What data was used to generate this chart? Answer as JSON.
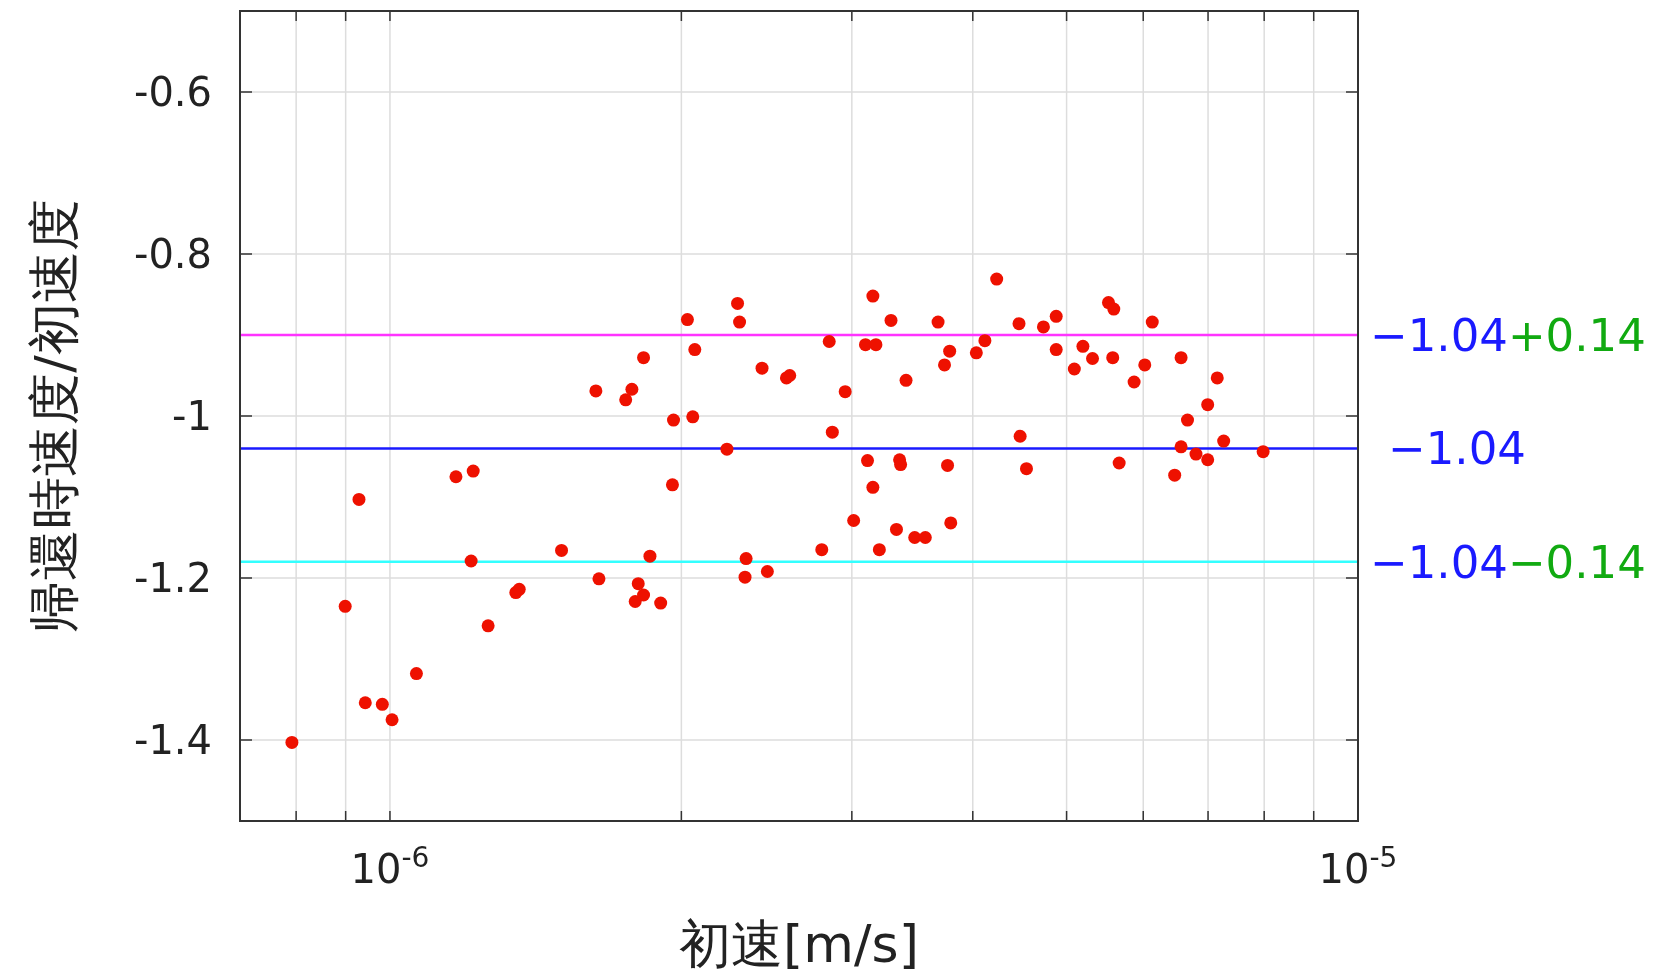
{
  "chart_data": {
    "type": "scatter",
    "xlabel": "初速[m/s]",
    "ylabel": "帰還時速度/初速度",
    "log": "x",
    "grid": true,
    "marker": "circle",
    "xlim": [
      7e-07,
      1e-05
    ],
    "ylim": [
      -1.5,
      -0.5
    ],
    "xticks": [
      {
        "value": 8e-07,
        "label": null
      },
      {
        "value": 9e-07,
        "label": null
      },
      {
        "value": 1e-06,
        "label": "10$^{-6}$"
      },
      {
        "value": 2e-06,
        "label": null
      },
      {
        "value": 3e-06,
        "label": null
      },
      {
        "value": 4e-06,
        "label": null
      },
      {
        "value": 5e-06,
        "label": null
      },
      {
        "value": 6e-06,
        "label": null
      },
      {
        "value": 7e-06,
        "label": null
      },
      {
        "value": 8e-06,
        "label": null
      },
      {
        "value": 9e-06,
        "label": null
      },
      {
        "value": 1e-05,
        "label": "10$^{-5}$"
      }
    ],
    "yticks": [
      -0.6,
      -0.8,
      -1,
      -1.2,
      -1.4
    ],
    "ref_lines": [
      {
        "axis": "y",
        "value": -0.9,
        "label": "−1.04+0.14",
        "color": "#ff33ff"
      },
      {
        "axis": "y",
        "value": -1.04,
        "label": "−1.04",
        "color": "#1a1aff"
      },
      {
        "axis": "y",
        "value": -1.18,
        "label": "−1.04−0.14",
        "color": "#33ffff"
      }
    ],
    "series": [
      {
        "color": "#ee1100",
        "x": [
          7.92e-07,
          8.99e-07,
          9.29e-07,
          9.43e-07,
          9.82e-07,
          1.005e-06,
          1.065e-06,
          1.17e-06,
          1.219e-06,
          1.213e-06,
          1.263e-06,
          1.349e-06,
          1.36e-06,
          1.504e-06,
          1.632e-06,
          1.644e-06,
          1.752e-06,
          1.778e-06,
          1.792e-06,
          1.805e-06,
          1.828e-06,
          1.828e-06,
          1.856e-06,
          1.904e-06,
          1.963e-06,
          1.958e-06,
          2.029e-06,
          2.055e-06,
          2.065e-06,
          2.229e-06,
          2.286e-06,
          2.297e-06,
          2.327e-06,
          2.333e-06,
          2.423e-06,
          2.454e-06,
          2.568e-06,
          2.588e-06,
          2.793e-06,
          2.843e-06,
          2.864e-06,
          2.953e-06,
          3.013e-06,
          3.099e-06,
          3.177e-06,
          3.114e-06,
          3.154e-06,
          3.154e-06,
          3.203e-06,
          3.293e-06,
          3.336e-06,
          3.361e-06,
          3.369e-06,
          3.413e-06,
          3.484e-06,
          3.573e-06,
          3.683e-06,
          3.74e-06,
          3.767e-06,
          3.786e-06,
          3.796e-06,
          4.034e-06,
          4.117e-06,
          4.234e-06,
          4.465e-06,
          4.477e-06,
          4.545e-06,
          4.732e-06,
          4.878e-06,
          4.878e-06,
          5.093e-06,
          5.198e-06,
          5.318e-06,
          5.524e-06,
          5.594e-06,
          5.58e-06,
          5.666e-06,
          5.871e-06,
          6.022e-06,
          6.13e-06,
          6.466e-06,
          6.565e-06,
          6.565e-06,
          6.666e-06,
          6.802e-06,
          6.994e-06,
          6.994e-06,
          7.155e-06,
          7.265e-06,
          7.98e-06
        ],
        "values": [
          -1.403,
          -1.235,
          -1.103,
          -1.354,
          -1.356,
          -1.375,
          -1.318,
          -1.075,
          -1.068,
          -1.179,
          -1.259,
          -1.218,
          -1.214,
          -1.166,
          -0.969,
          -1.201,
          -0.98,
          -0.967,
          -1.229,
          -1.207,
          -1.221,
          -0.928,
          -1.173,
          -1.231,
          -1.005,
          -1.085,
          -0.881,
          -1.001,
          -0.918,
          -1.041,
          -0.861,
          -0.884,
          -1.199,
          -1.176,
          -0.941,
          -1.192,
          -0.953,
          -0.95,
          -1.165,
          -0.908,
          -1.02,
          -0.97,
          -1.129,
          -0.912,
          -0.912,
          -1.055,
          -0.852,
          -1.088,
          -1.165,
          -0.882,
          -1.14,
          -1.054,
          -1.06,
          -0.956,
          -1.15,
          -1.15,
          -0.884,
          -0.937,
          -1.061,
          -0.92,
          -1.132,
          -0.922,
          -0.907,
          -0.831,
          -0.886,
          -1.025,
          -1.065,
          -0.89,
          -0.877,
          -0.918,
          -0.942,
          -0.914,
          -0.929,
          -0.86,
          -0.868,
          -0.928,
          -1.058,
          -0.958,
          -0.937,
          -0.884,
          -1.073,
          -0.928,
          -1.038,
          -1.005,
          -1.047,
          -0.986,
          -1.054,
          -0.953,
          -1.031,
          -1.044
        ]
      }
    ]
  }
}
